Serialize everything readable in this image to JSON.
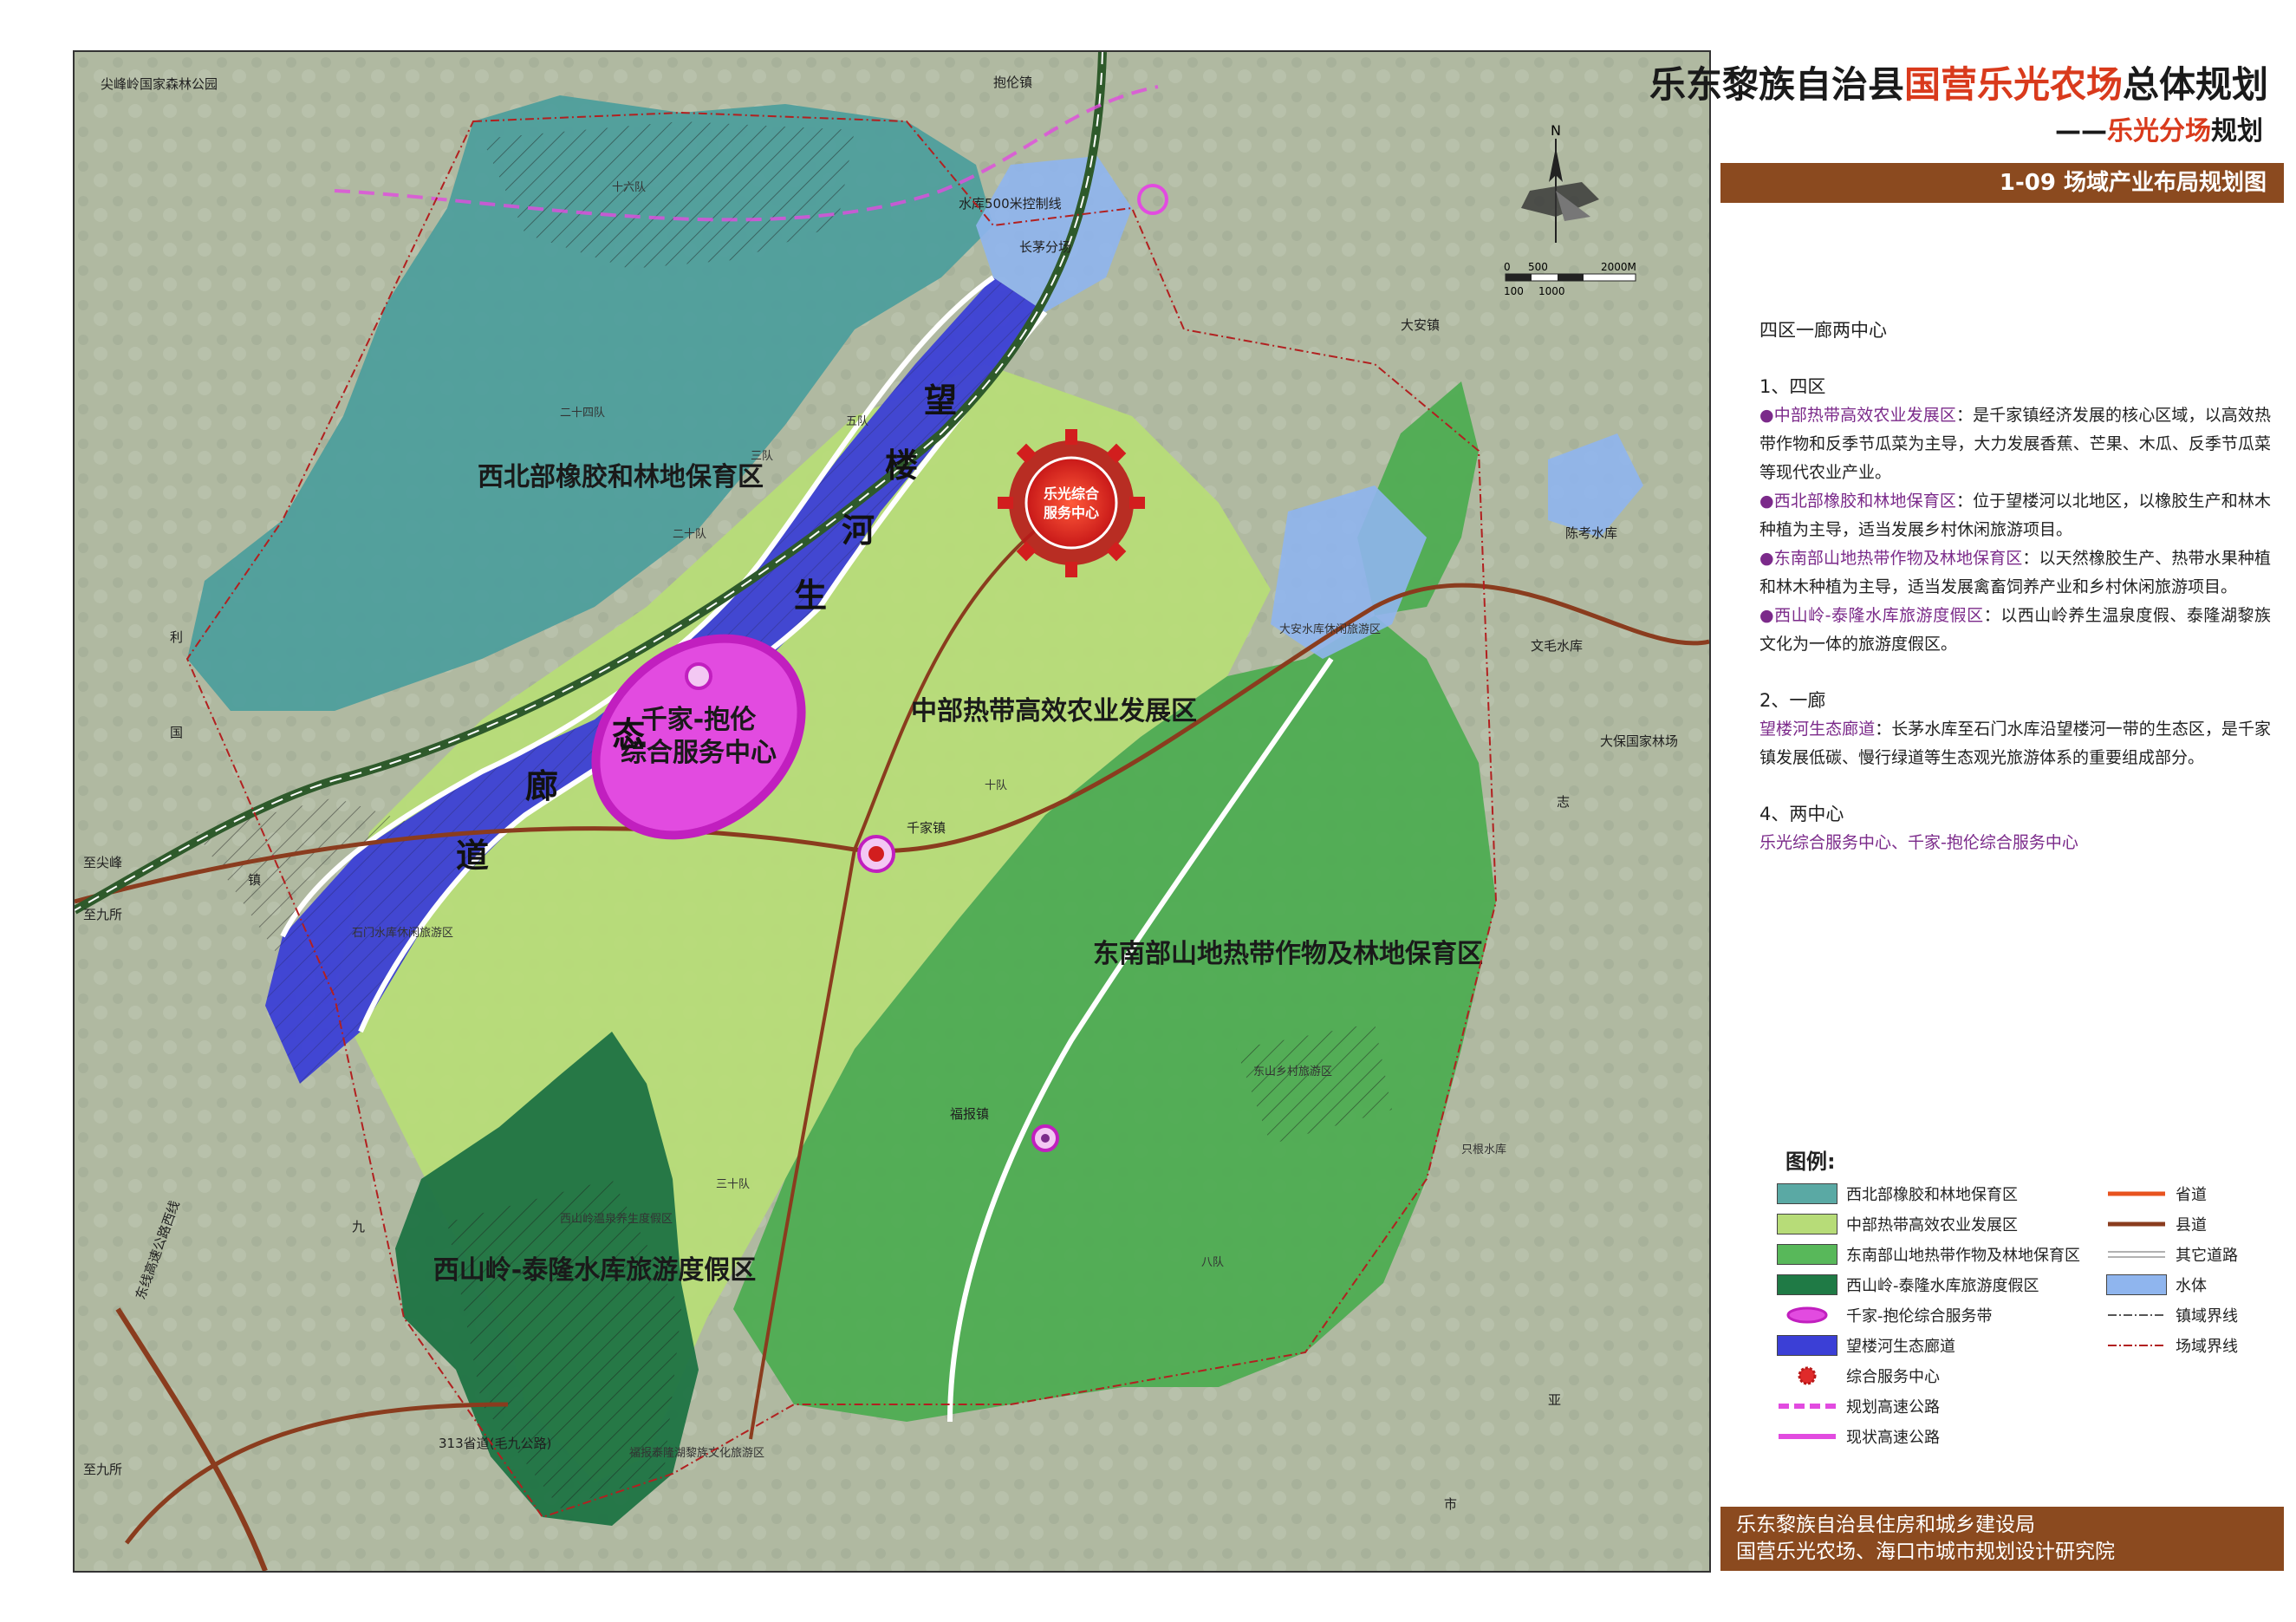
{
  "header": {
    "title_part1": "乐东黎族自治县",
    "title_part2": "国营乐光农场",
    "title_part3": "总体规划",
    "subtitle_prefix": "——",
    "subtitle_highlight": "乐光分场",
    "subtitle_suffix": "规划",
    "sheet_title": "1-09  场域产业布局规划图"
  },
  "north_arrow": {
    "label": "N"
  },
  "scale_bar": {
    "top_labels": [
      "0",
      "500",
      "2000M"
    ],
    "bottom_labels": [
      "100",
      "1000"
    ]
  },
  "description": {
    "heading": "四区一廊两中心",
    "section1_heading": "1、四区",
    "zone1_name": "中部热带高效农业发展区",
    "zone1_text": "：是千家镇经济发展的核心区域，以高效热带作物和反季节瓜菜为主导，大力发展香蕉、芒果、木瓜、反季节瓜菜等现代农业产业。",
    "zone2_name": "西北部橡胶和林地保育区",
    "zone2_text": "：位于望楼河以北地区，以橡胶生产和林木种植为主导，适当发展乡村休闲旅游项目。",
    "zone3_name": "东南部山地热带作物及林地保育区",
    "zone3_text": "：以天然橡胶生产、热带水果种植和林木种植为主导，适当发展禽畜饲养产业和乡村休闲旅游项目。",
    "zone4_name": "西山岭-泰隆水库旅游度假区",
    "zone4_text": "：以西山岭养生温泉度假、泰隆湖黎族文化为一体的旅游度假区。",
    "section2_heading": "2、一廊",
    "corridor_name": "望楼河生态廊道",
    "corridor_text": "：长茅水库至石门水库沿望楼河一带的生态区，是千家镇发展低碳、慢行绿道等生态观光旅游体系的重要组成部分。",
    "section4_heading": "4、两中心",
    "centers_text": "乐光综合服务中心、千家-抱伦综合服务中心"
  },
  "legend": {
    "title": "图例:",
    "items_left": [
      {
        "label": "西北部橡胶和林地保育区",
        "color": "#5aa9a4"
      },
      {
        "label": "中部热带高效农业发展区",
        "color": "#b7dc78"
      },
      {
        "label": "东南部山地热带作物及林地保育区",
        "color": "#58b85a"
      },
      {
        "label": "西山岭-泰隆水库旅游度假区",
        "color": "#1f7a45"
      },
      {
        "label": "千家-抱伦综合服务带",
        "color": "#e24be0"
      },
      {
        "label": "望楼河生态廊道",
        "color": "#3b3fd6"
      },
      {
        "label": "综合服务中心",
        "color": "#e02a2a"
      },
      {
        "label": "规划高速公路",
        "color": "#e24be0"
      },
      {
        "label": "现状高速公路",
        "color": "#e24be0"
      }
    ],
    "items_right": [
      {
        "label": "省道",
        "color": "#e8531f"
      },
      {
        "label": "县道",
        "color": "#8a3c1e"
      },
      {
        "label": "其它道路",
        "color": "#ffffff"
      },
      {
        "label": "水体",
        "color": "#8fb5ee"
      },
      {
        "label": "镇域界线",
        "color": "#555555"
      },
      {
        "label": "场域界线",
        "color": "#b22020"
      }
    ]
  },
  "footer": {
    "line1": "乐东黎族自治县住房和城乡建设局",
    "line2": "国营乐光农场、海口市城市规划设计研究院"
  },
  "map": {
    "zone_labels": {
      "northwest": "西北部橡胶和林地保育区",
      "central": "中部热带高效农业发展区",
      "southeast": "东南部山地热带作物及林地保育区",
      "southwest": "西山岭-泰隆水库旅游度假区"
    },
    "corridor_chars": [
      "望",
      "楼",
      "河",
      "生",
      "态",
      "廊",
      "道"
    ],
    "center_leguang_line1": "乐光综合",
    "center_leguang_line2": "服务中心",
    "center_qianjia_line1": "千家-抱伦",
    "center_qianjia_line2": "综合服务中心",
    "place_labels": {
      "jianfengling": "尖峰岭国家森林公园",
      "baolunzhen": "抱伦镇",
      "qianjiazhen": "千家镇",
      "fubaozhen": "福报镇",
      "chenkaoshuiku": "陈考水库",
      "dazhen": "大安镇",
      "wenmaoshuiku": "文毛水库",
      "dabaoguojia": "大保国家林场",
      "zhijianfeng": "至尖峰",
      "zhijiusuo": "至九所",
      "zhijiusuo2": "至九所",
      "highway_west": "东线高速公路西线",
      "road313": "313省道(毛九公路)",
      "changmao": "长茅分场",
      "shuiku500": "水库500米控制线",
      "shimen": "石门水库休闲旅游区",
      "xishan_hot": "西山岭温泉养生度假区",
      "taolong": "福报泰隆湖黎族文化旅游区",
      "dongshanxiang": "东山乡村旅游区",
      "da_an_shuiku": "大安水库休闲旅游区",
      "yibaoshuiku": "只根水库",
      "liu": "利",
      "jiu": "九",
      "zhen": "镇",
      "guo": "国",
      "ya": "亚",
      "zhi": "志",
      "shi": "市",
      "dui_3": "三队",
      "dui_5": "五队",
      "dui_8": "八队",
      "dui_10": "十队",
      "dui_16": "十六队",
      "dui_20": "二十队",
      "dui_24": "二十四队",
      "dui_30": "三十队"
    }
  }
}
